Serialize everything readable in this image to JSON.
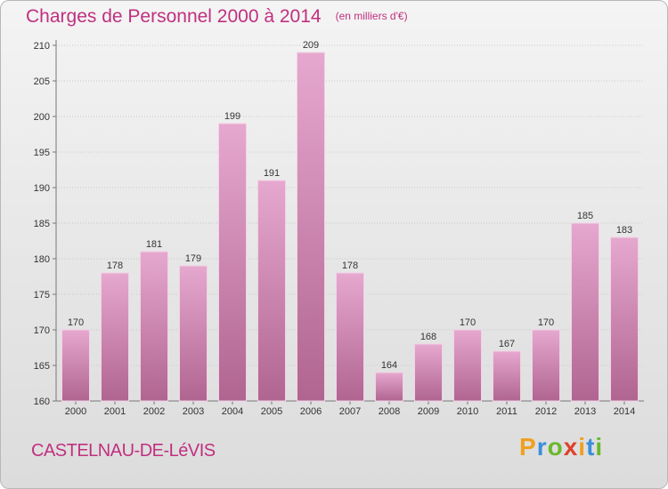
{
  "title": "Charges de Personnel 2000 à 2014",
  "subtitle": "(en milliers d'€)",
  "city": "CASTELNAU-DE-LéVIS",
  "logo": {
    "letters": [
      "P",
      "r",
      "o",
      "x",
      "i",
      "t",
      "i"
    ],
    "colors": [
      "#f0a020",
      "#3a8fd8",
      "#6ab82e",
      "#e0402a",
      "#f0a020",
      "#3a8fd8",
      "#6ab82e"
    ]
  },
  "colors": {
    "accent": "#c0307f",
    "bar_top": "#e6a8cf",
    "bar_bottom": "#b06590"
  },
  "chart_data": {
    "type": "bar",
    "title": "Charges de Personnel 2000 à 2014",
    "subtitle": "(en milliers d'€)",
    "categories": [
      "2000",
      "2001",
      "2002",
      "2003",
      "2004",
      "2005",
      "2006",
      "2007",
      "2008",
      "2009",
      "2010",
      "2011",
      "2012",
      "2013",
      "2014"
    ],
    "values": [
      170,
      178,
      181,
      179,
      199,
      191,
      209,
      178,
      164,
      168,
      170,
      167,
      170,
      185,
      183
    ],
    "ylim": [
      160,
      210
    ],
    "yticks": [
      160,
      165,
      170,
      175,
      180,
      185,
      190,
      195,
      200,
      205,
      210
    ],
    "grid": true
  }
}
